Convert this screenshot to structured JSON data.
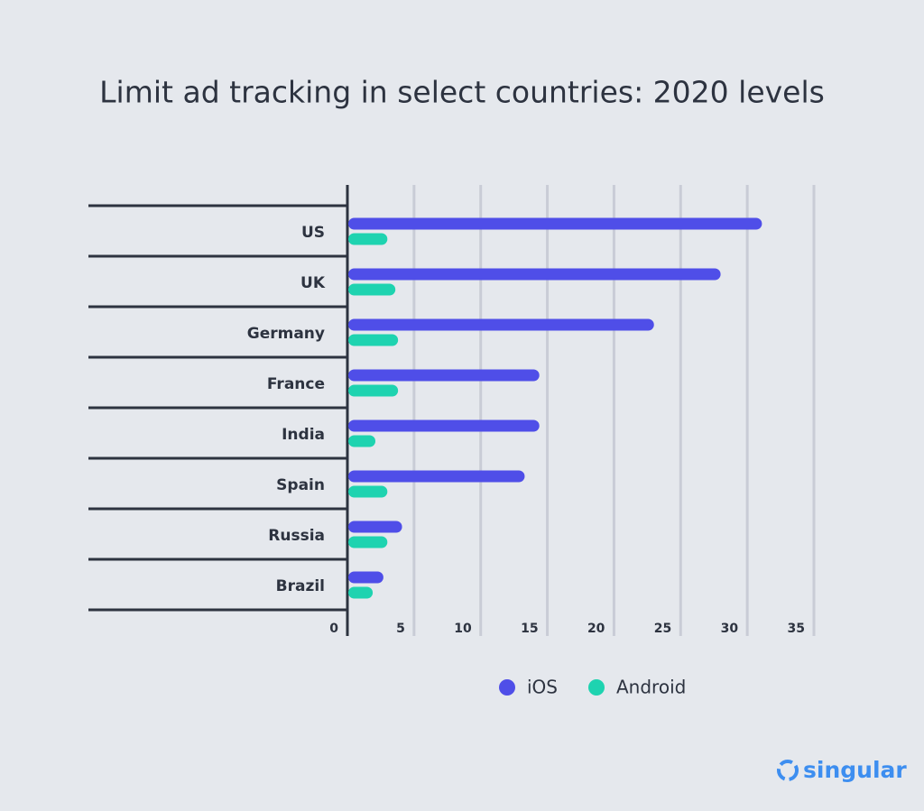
{
  "chart_data": {
    "type": "barh",
    "title": "Limit ad tracking in select countries: 2020 levels",
    "categories": [
      "US",
      "UK",
      "Germany",
      "France",
      "India",
      "Spain",
      "Russia",
      "Brazil"
    ],
    "series": [
      {
        "name": "iOS",
        "color": "#4f4ee8",
        "values": [
          31.1,
          28,
          23,
          14.4,
          14.4,
          13.3,
          4.1,
          2.7
        ]
      },
      {
        "name": "Android",
        "color": "#1ed3b0",
        "values": [
          3,
          3.6,
          3.8,
          3.8,
          2.1,
          3,
          3,
          1.9
        ]
      }
    ],
    "xlim": [
      0,
      35
    ],
    "xticks": [
      0,
      5,
      10,
      15,
      20,
      25,
      30,
      35
    ],
    "grid": true,
    "legend": "bottom",
    "brand": "singular"
  }
}
